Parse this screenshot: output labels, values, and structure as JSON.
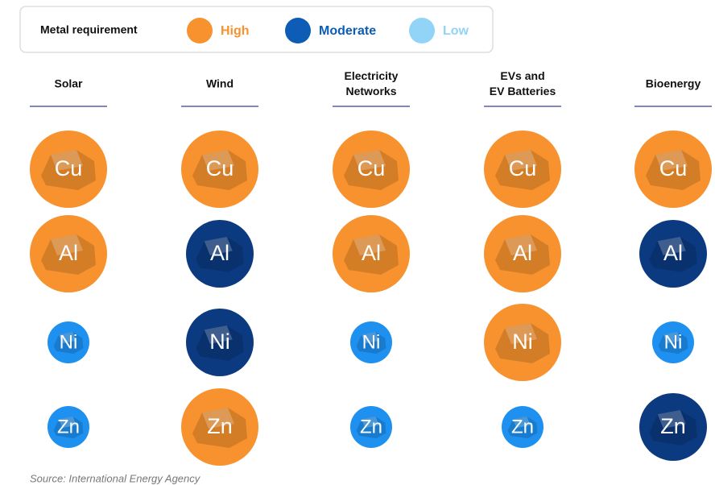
{
  "legend": {
    "title": "Metal requirement",
    "items": [
      {
        "label": "High",
        "color": "#f7922e",
        "text_color": "#f7922e",
        "fill": "#f7922e"
      },
      {
        "label": "Moderate",
        "color": "#0d5cb6",
        "text_color": "#0d5cb6",
        "fill": "#0b3a80"
      },
      {
        "label": "Low",
        "color": "#92d4f7",
        "text_color": "#92d4f7",
        "fill": "#1e90f0"
      }
    ]
  },
  "columns": [
    {
      "name": [
        "Solar"
      ],
      "cells": [
        {
          "symbol": "Cu",
          "level": "High"
        },
        {
          "symbol": "Al",
          "level": "High"
        },
        {
          "symbol": "Ni",
          "level": "Low"
        },
        {
          "symbol": "Zn",
          "level": "Low"
        }
      ]
    },
    {
      "name": [
        "Wind"
      ],
      "cells": [
        {
          "symbol": "Cu",
          "level": "High"
        },
        {
          "symbol": "Al",
          "level": "Moderate"
        },
        {
          "symbol": "Ni",
          "level": "Moderate"
        },
        {
          "symbol": "Zn",
          "level": "High"
        }
      ]
    },
    {
      "name": [
        "Electricity",
        "Networks"
      ],
      "cells": [
        {
          "symbol": "Cu",
          "level": "High"
        },
        {
          "symbol": "Al",
          "level": "High"
        },
        {
          "symbol": "Ni",
          "level": "Low"
        },
        {
          "symbol": "Zn",
          "level": "Low"
        }
      ]
    },
    {
      "name": [
        "EVs and",
        "EV Batteries"
      ],
      "cells": [
        {
          "symbol": "Cu",
          "level": "High"
        },
        {
          "symbol": "Al",
          "level": "High"
        },
        {
          "symbol": "Ni",
          "level": "High"
        },
        {
          "symbol": "Zn",
          "level": "Low"
        }
      ]
    },
    {
      "name": [
        "Bioenergy"
      ],
      "cells": [
        {
          "symbol": "Cu",
          "level": "High"
        },
        {
          "symbol": "Al",
          "level": "Moderate"
        },
        {
          "symbol": "Ni",
          "level": "Low"
        },
        {
          "symbol": "Zn",
          "level": "Moderate"
        }
      ]
    }
  ],
  "source": "Source: International Energy Agency"
}
